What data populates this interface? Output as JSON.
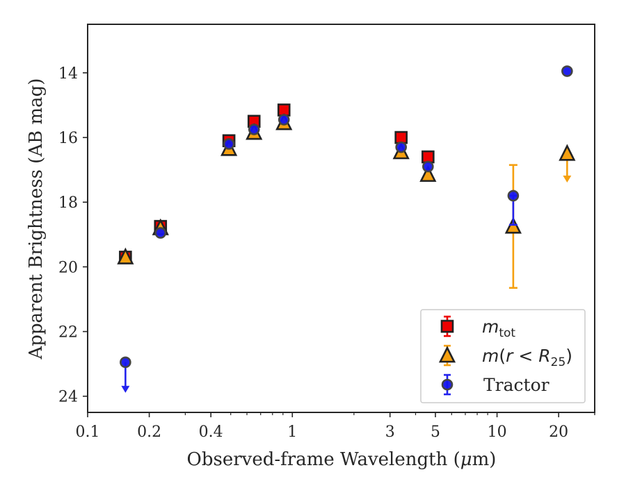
{
  "chart_data": {
    "type": "scatter",
    "xlabel_prefix": "Observed-frame Wavelength (",
    "xlabel_mu": "μ",
    "xlabel_suffix": "m)",
    "ylabel": "Apparent Brightness (AB mag)",
    "x_scale": "log",
    "xlim": [
      0.1,
      30
    ],
    "ylim": [
      24.5,
      12.5
    ],
    "y_inverted": true,
    "x_ticks": [
      {
        "value": 0.1,
        "label": "0.1"
      },
      {
        "value": 0.2,
        "label": "0.2"
      },
      {
        "value": 0.4,
        "label": "0.4"
      },
      {
        "value": 1,
        "label": "1"
      },
      {
        "value": 3,
        "label": "3"
      },
      {
        "value": 5,
        "label": "5"
      },
      {
        "value": 10,
        "label": "10"
      },
      {
        "value": 20,
        "label": "20"
      }
    ],
    "y_ticks": [
      14,
      16,
      18,
      20,
      22,
      24
    ],
    "grid": false,
    "legend_position": "bottom-right",
    "series": [
      {
        "key": "mtot",
        "label_main": "m",
        "label_sub": "tot",
        "marker": "square",
        "color": "#ee0000",
        "errcolor": "#ee0000",
        "points": [
          {
            "x": 0.153,
            "y": 19.7
          },
          {
            "x": 0.227,
            "y": 18.75
          },
          {
            "x": 0.49,
            "y": 16.1
          },
          {
            "x": 0.65,
            "y": 15.5
          },
          {
            "x": 0.91,
            "y": 15.15
          },
          {
            "x": 3.4,
            "y": 16.0
          },
          {
            "x": 4.6,
            "y": 16.6
          }
        ]
      },
      {
        "key": "mr25",
        "label_main": "m",
        "label_paren_open": "(",
        "label_r": "r",
        "label_lt": " < ",
        "label_R": "R",
        "label_sub": "25",
        "label_paren_close": ")",
        "marker": "triangle",
        "color": "#f5a010",
        "errcolor": "#f5a010",
        "points": [
          {
            "x": 0.153,
            "y": 19.7
          },
          {
            "x": 0.227,
            "y": 18.8
          },
          {
            "x": 0.49,
            "y": 16.35
          },
          {
            "x": 0.65,
            "y": 15.85
          },
          {
            "x": 0.91,
            "y": 15.55
          },
          {
            "x": 3.4,
            "y": 16.45
          },
          {
            "x": 4.6,
            "y": 17.15
          },
          {
            "x": 12.0,
            "y": 18.75,
            "err_low": 16.85,
            "err_high": 20.65
          },
          {
            "x": 22.0,
            "y": 16.5,
            "upper_limit": true,
            "arrow_to": 17.35
          }
        ]
      },
      {
        "key": "tractor",
        "label_main": "Tractor",
        "marker": "circle",
        "color": "#1515ee",
        "errcolor": "#2222ee",
        "points": [
          {
            "x": 0.153,
            "y": 22.95,
            "upper_limit": true,
            "arrow_to": 23.85
          },
          {
            "x": 0.227,
            "y": 18.95
          },
          {
            "x": 0.49,
            "y": 16.2
          },
          {
            "x": 0.65,
            "y": 15.75
          },
          {
            "x": 0.91,
            "y": 15.45
          },
          {
            "x": 3.4,
            "y": 16.3
          },
          {
            "x": 4.6,
            "y": 16.9
          },
          {
            "x": 12.0,
            "y": 17.8,
            "err_low": 17.8,
            "err_high": 18.7
          },
          {
            "x": 22.0,
            "y": 13.95
          }
        ]
      }
    ]
  }
}
